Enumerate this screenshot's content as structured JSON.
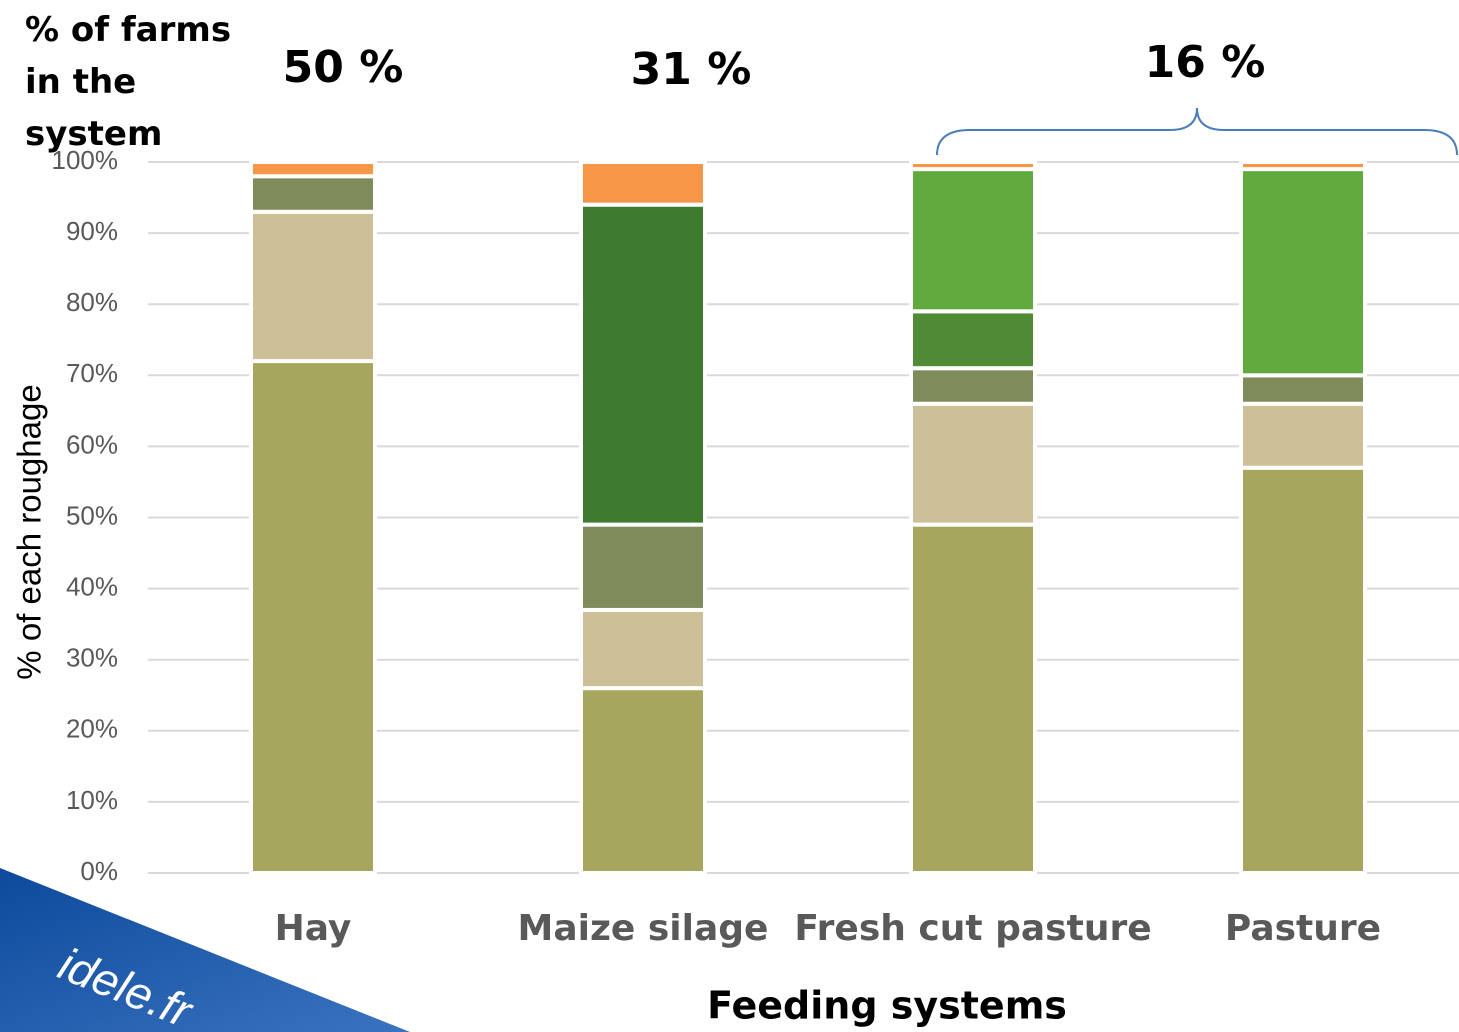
{
  "chart_data": {
    "type": "stacked_bar",
    "title": "% of farms in the system",
    "annotations": [
      "50 %",
      "31 %",
      "16 %"
    ],
    "watermark": "idele.fr",
    "y_label": "% of each roughage",
    "x_label": "Feeding systems",
    "categories": [
      "Hay",
      "Maize silage",
      "Fresh cut pasture",
      "Pasture"
    ],
    "series": [
      {
        "color": "#a7a65f",
        "values": [
          72,
          26,
          49,
          57
        ]
      },
      {
        "color": "#cdbf98",
        "values": [
          21,
          11,
          17,
          9
        ]
      },
      {
        "color": "#7e8c5c",
        "values": [
          5,
          12,
          5,
          4
        ]
      },
      {
        "color": "#3e7b2f",
        "values": [
          0,
          45,
          0,
          0
        ]
      },
      {
        "color": "#4f8b35",
        "values": [
          0,
          0,
          8,
          0
        ]
      },
      {
        "color": "#60a93c",
        "values": [
          0,
          0,
          20,
          29
        ]
      },
      {
        "color": "#f79646",
        "values": [
          2,
          6,
          1,
          1
        ]
      }
    ],
    "ylim": [
      0,
      100
    ],
    "yticks": [
      {
        "value": 0,
        "label": "0%"
      },
      {
        "value": 10,
        "label": "10%"
      },
      {
        "value": 20,
        "label": "20%"
      },
      {
        "value": 30,
        "label": "30%"
      },
      {
        "value": 40,
        "label": "40%"
      },
      {
        "value": 50,
        "label": "50%"
      },
      {
        "value": 60,
        "label": "60%"
      },
      {
        "value": 70,
        "label": "70%"
      },
      {
        "value": 80,
        "label": "80%"
      },
      {
        "value": 90,
        "label": "90%"
      },
      {
        "value": 100,
        "label": "100%"
      }
    ],
    "grid": true
  }
}
